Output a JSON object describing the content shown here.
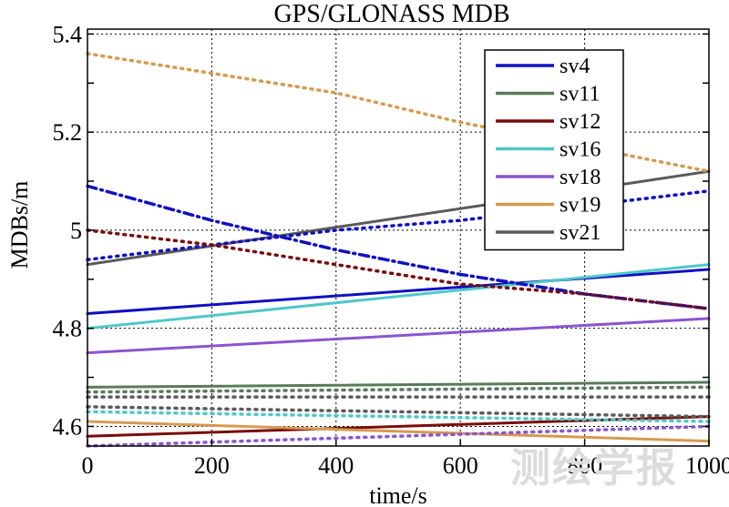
{
  "chart_data": {
    "type": "line",
    "title": "GPS/GLONASS MDB",
    "xlabel": "time/s",
    "ylabel": "MDBs/m",
    "xlim": [
      0,
      1000
    ],
    "ylim": [
      4.56,
      5.41
    ],
    "xticks": [
      0,
      200,
      400,
      600,
      800,
      1000
    ],
    "yticks": [
      4.6,
      4.8,
      5,
      5.2,
      5.4
    ],
    "xtick_labels": [
      "0",
      "200",
      "400",
      "600",
      "800",
      "1000"
    ],
    "ytick_labels": [
      "4.6",
      "4.8",
      "5",
      "5.2",
      "5.4"
    ],
    "grid": true,
    "legend_position": "top-right",
    "series": [
      {
        "name": "sv4",
        "color": "#1010c0",
        "style": "solid",
        "x": [
          0,
          1000
        ],
        "y": [
          4.83,
          4.92
        ]
      },
      {
        "name": "sv11",
        "color": "#5a7a5a",
        "style": "solid",
        "x": [
          0,
          1000
        ],
        "y": [
          4.68,
          4.69
        ]
      },
      {
        "name": "sv12",
        "color": "#7a0c0c",
        "style": "solid",
        "x": [
          0,
          1000
        ],
        "y": [
          4.58,
          4.62
        ]
      },
      {
        "name": "sv16",
        "color": "#4ec8c8",
        "style": "solid",
        "x": [
          0,
          1000
        ],
        "y": [
          4.8,
          4.93
        ]
      },
      {
        "name": "sv18",
        "color": "#8a55d0",
        "style": "solid",
        "x": [
          0,
          1000
        ],
        "y": [
          4.75,
          4.82
        ]
      },
      {
        "name": "sv19",
        "color": "#d69a50",
        "style": "solid",
        "x": [
          0,
          1000
        ],
        "y": [
          4.61,
          4.57
        ]
      },
      {
        "name": "sv21",
        "color": "#5a5a5a",
        "style": "solid",
        "x": [
          0,
          1000
        ],
        "y": [
          4.93,
          5.12
        ]
      },
      {
        "name": "sv4",
        "color": "#1010c0",
        "style": "dashdot",
        "x": [
          0,
          200,
          400,
          600,
          800,
          1000
        ],
        "y": [
          5.09,
          5.02,
          4.96,
          4.91,
          4.87,
          4.84
        ]
      },
      {
        "name": "sv4",
        "color": "#1010c0",
        "style": "dotted",
        "x": [
          0,
          200,
          400,
          600,
          800,
          1000
        ],
        "y": [
          4.94,
          4.97,
          5.0,
          5.02,
          5.05,
          5.08
        ]
      },
      {
        "name": "sv12",
        "color": "#7a0c0c",
        "style": "dotted",
        "x": [
          0,
          200,
          400,
          600,
          800,
          1000
        ],
        "y": [
          5.0,
          4.97,
          4.93,
          4.89,
          4.87,
          4.84
        ]
      },
      {
        "name": "sv19",
        "color": "#d69a50",
        "style": "dotted",
        "x": [
          0,
          200,
          400,
          600,
          800,
          1000
        ],
        "y": [
          5.36,
          5.32,
          5.28,
          5.22,
          5.17,
          5.12
        ]
      },
      {
        "name": "sv11",
        "color": "#5a7a5a",
        "style": "dotted",
        "x": [
          0,
          1000
        ],
        "y": [
          4.67,
          4.68
        ]
      },
      {
        "name": "sv21",
        "color": "#5a5a5a",
        "style": "dotted",
        "x": [
          0,
          1000
        ],
        "y": [
          4.66,
          4.66
        ]
      },
      {
        "name": "sv21",
        "color": "#5a5a5a",
        "style": "dotted",
        "x": [
          0,
          1000
        ],
        "y": [
          4.64,
          4.62
        ]
      },
      {
        "name": "sv16",
        "color": "#4ec8c8",
        "style": "dotted",
        "x": [
          0,
          1000
        ],
        "y": [
          4.63,
          4.61
        ]
      },
      {
        "name": "sv18",
        "color": "#8a55d0",
        "style": "dotted",
        "x": [
          0,
          1000
        ],
        "y": [
          4.56,
          4.6
        ]
      }
    ]
  },
  "watermark": "测绘学报"
}
